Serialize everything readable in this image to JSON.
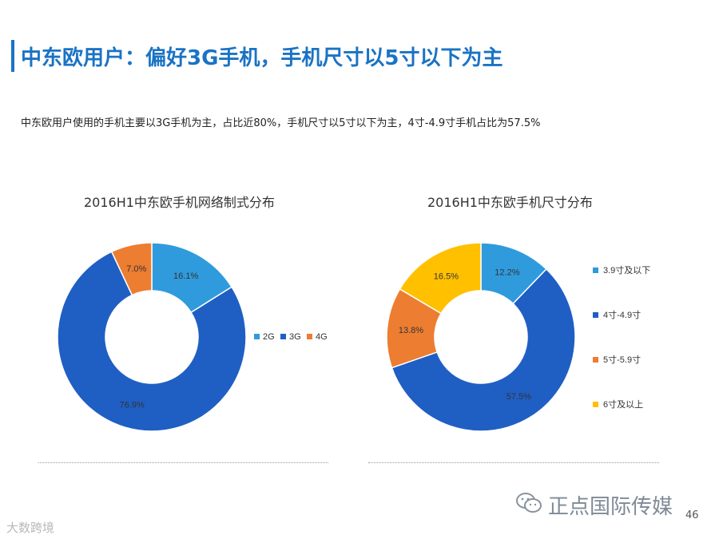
{
  "page": {
    "title": "中东欧用户：偏好3G手机，手机尺寸以5寸以下为主",
    "summary": "中东欧用户使用的手机主要以3G手机为主，占比近80%，手机尺寸以5寸以下为主，4寸-4.9寸手机占比为57.5%",
    "page_number": "46",
    "watermark": "正点国际传媒",
    "watermark_small": "大数跨境"
  },
  "colors": {
    "title": "#1a73c4",
    "light_blue": "#2f9bdc",
    "blue": "#1f5fc4",
    "orange": "#ed7d31",
    "gold": "#ffc000"
  },
  "chart_data": [
    {
      "type": "pie",
      "variant": "donut",
      "title": "2016H1中东欧手机网络制式分布",
      "categories": [
        "2G",
        "3G",
        "4G"
      ],
      "values": [
        16.1,
        76.9,
        7.0
      ],
      "labels": [
        "16.1%",
        "76.9%",
        "7.0%"
      ],
      "colors": [
        "#2f9bdc",
        "#1f5fc4",
        "#ed7d31"
      ],
      "legend": "right"
    },
    {
      "type": "pie",
      "variant": "donut",
      "title": "2016H1中东欧手机尺寸分布",
      "categories": [
        "3.9寸及以下",
        "4寸-4.9寸",
        "5寸-5.9寸",
        "6寸及以上"
      ],
      "values": [
        12.2,
        57.5,
        13.8,
        16.5
      ],
      "labels": [
        "12.2%",
        "57.5%",
        "13.8%",
        "16.5%"
      ],
      "colors": [
        "#2f9bdc",
        "#1f5fc4",
        "#ed7d31",
        "#ffc000"
      ],
      "legend": "right"
    }
  ]
}
